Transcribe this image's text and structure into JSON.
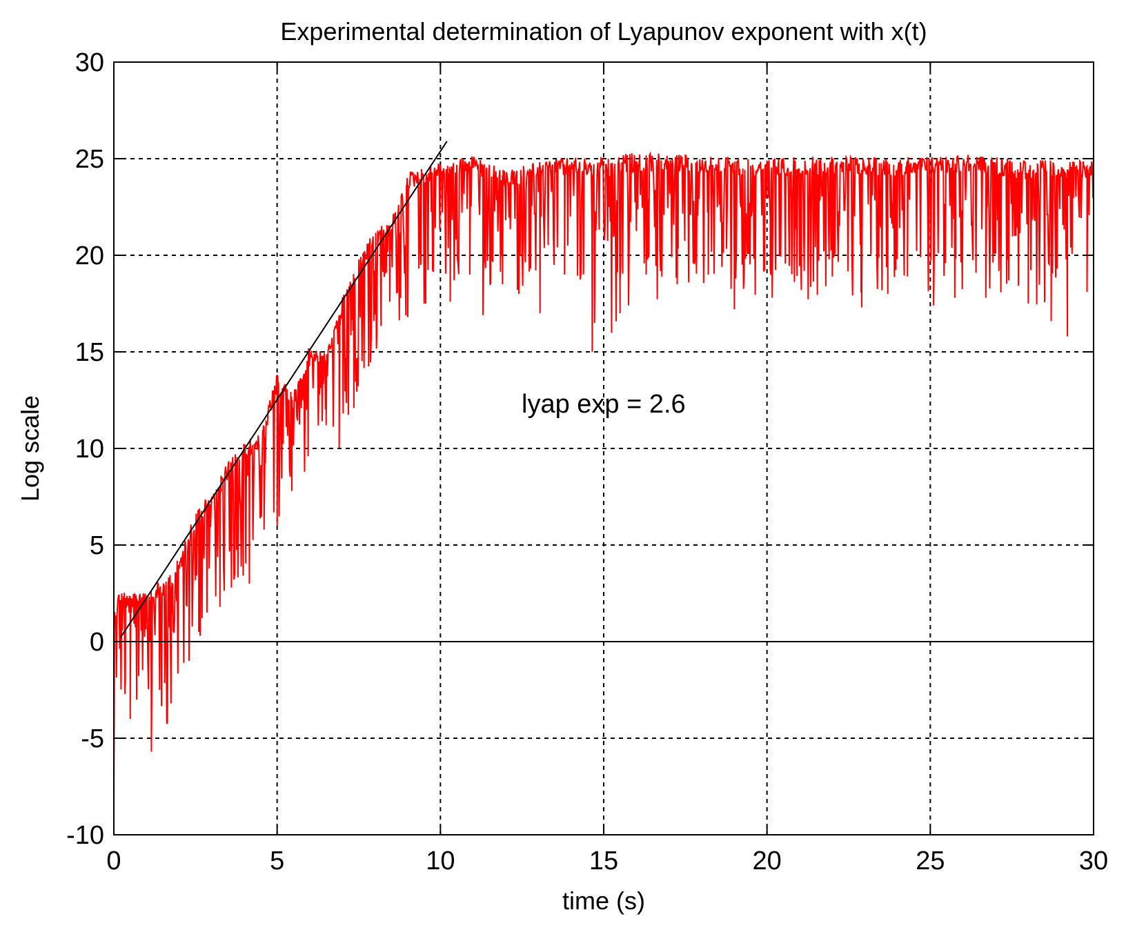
{
  "chart_data": {
    "type": "line",
    "title": "Experimental determination of Lyapunov exponent with x(t)",
    "xlabel": "time (s)",
    "ylabel": "Log scale",
    "xlim": [
      0,
      30
    ],
    "ylim": [
      -10,
      30
    ],
    "xticks": [
      0,
      5,
      10,
      15,
      20,
      25,
      30
    ],
    "yticks": [
      -10,
      -5,
      0,
      5,
      10,
      15,
      20,
      25,
      30
    ],
    "grid": true,
    "annotation": "lyap exp = 2.6",
    "colors": {
      "series": "#ff0000",
      "fit": "#000000",
      "grid": "#000000"
    },
    "series": [
      {
        "name": "log divergence",
        "color": "#ff0000",
        "envelope": {
          "t": [
            0,
            0.2,
            0.5,
            1,
            1.5,
            2,
            2.5,
            3,
            3.5,
            4,
            4.5,
            5,
            5.5,
            6,
            6.5,
            7,
            7.5,
            8,
            8.5,
            9,
            10,
            11,
            12,
            13,
            14,
            15,
            16,
            18,
            20,
            22,
            24,
            26,
            28,
            30
          ],
          "upper": [
            2,
            3,
            2.5,
            3,
            3.5,
            4.5,
            7,
            8,
            9.5,
            10.5,
            11,
            14,
            13,
            15.5,
            15,
            18,
            20,
            21.5,
            22,
            24.5,
            25,
            25.3,
            24.5,
            25,
            25.2,
            25.3,
            25.5,
            25.3,
            25.2,
            25.3,
            25.2,
            25.4,
            25.1,
            25
          ],
          "lower": [
            -8.4,
            -4,
            -3.5,
            -3,
            -5.7,
            -3.2,
            -1,
            1.5,
            2,
            3,
            4,
            5.5,
            7,
            8,
            11,
            10,
            12,
            14.7,
            15.5,
            16.5,
            17.5,
            19,
            17,
            19,
            18.5,
            15,
            17,
            18,
            17,
            17.5,
            17.5,
            17.5,
            16.5,
            18.5
          ]
        },
        "dips": [
          [
            0.35,
            -2
          ],
          [
            0.5,
            -4
          ],
          [
            0.7,
            -3
          ],
          [
            1.15,
            -5.7
          ],
          [
            1.4,
            -2.5
          ],
          [
            1.75,
            -3.2
          ],
          [
            2.3,
            -1
          ],
          [
            2.6,
            0.5
          ],
          [
            2.85,
            1.5
          ],
          [
            3.25,
            1.8
          ],
          [
            3.55,
            4.8
          ],
          [
            4.15,
            3.0
          ],
          [
            4.6,
            5.8
          ],
          [
            5.0,
            6.0
          ],
          [
            5.45,
            7.8
          ],
          [
            5.95,
            9.6
          ],
          [
            6.5,
            11.2
          ],
          [
            6.9,
            10.0
          ],
          [
            7.35,
            12.1
          ],
          [
            7.8,
            14.7
          ],
          [
            8.05,
            15.8
          ],
          [
            8.45,
            17.6
          ],
          [
            9.0,
            16.8
          ],
          [
            9.55,
            17.5
          ],
          [
            10.3,
            17.6
          ],
          [
            10.9,
            19.0
          ],
          [
            11.3,
            16.9
          ],
          [
            11.9,
            18.5
          ],
          [
            12.4,
            18.0
          ],
          [
            13.05,
            17.0
          ],
          [
            13.8,
            19.0
          ],
          [
            14.65,
            15.0
          ],
          [
            15.5,
            17.0
          ],
          [
            16.3,
            19.0
          ],
          [
            17.25,
            18.5
          ],
          [
            18.2,
            19.0
          ],
          [
            19.0,
            17.2
          ],
          [
            20.1,
            19.3
          ],
          [
            21.05,
            18.2
          ],
          [
            22.0,
            18.9
          ],
          [
            22.9,
            17.3
          ],
          [
            23.7,
            18.0
          ],
          [
            24.3,
            18.9
          ],
          [
            25.1,
            17.4
          ],
          [
            25.75,
            17.8
          ],
          [
            26.7,
            17.8
          ],
          [
            27.4,
            18.7
          ],
          [
            28.0,
            17.5
          ],
          [
            28.7,
            16.6
          ],
          [
            29.2,
            15.8
          ],
          [
            29.8,
            18.1
          ]
        ]
      },
      {
        "name": "linear fit",
        "color": "#000000",
        "x": [
          0.2,
          10.2
        ],
        "y": [
          0.2,
          25.9
        ]
      },
      {
        "name": "zero line",
        "color": "#000000",
        "x": [
          0,
          30
        ],
        "y": [
          0,
          0
        ]
      }
    ]
  }
}
